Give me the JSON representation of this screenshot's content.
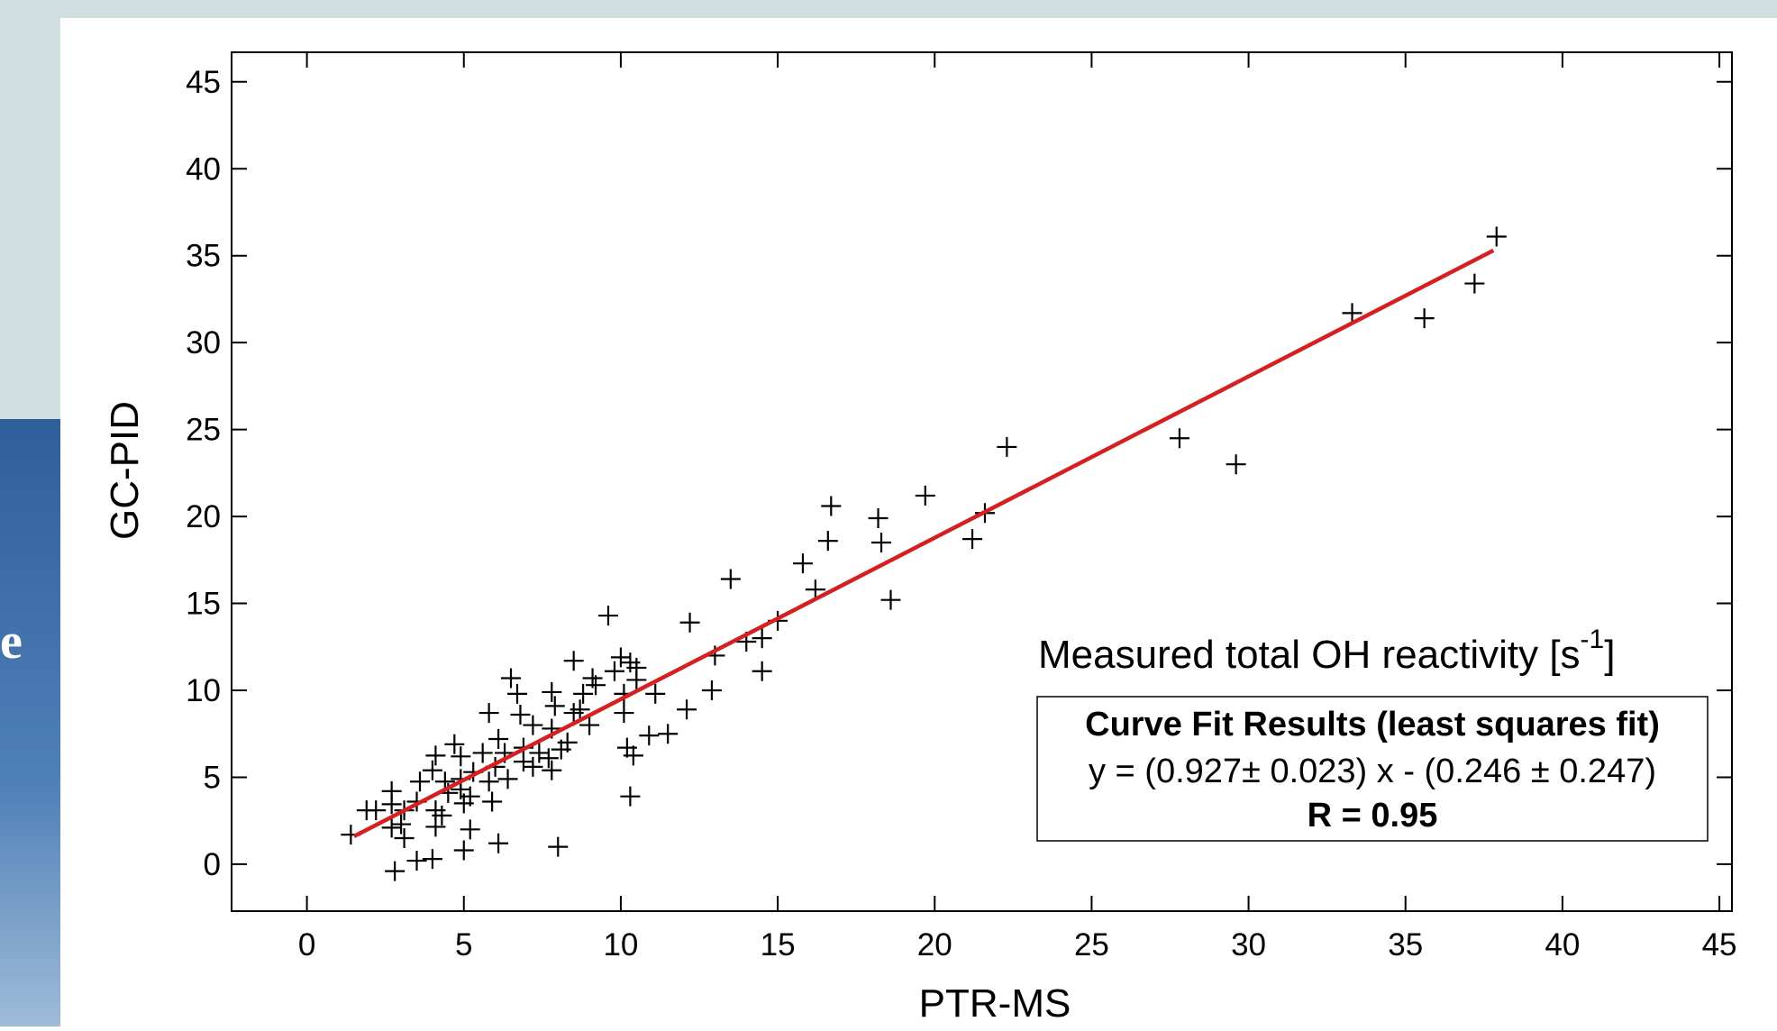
{
  "chart_data": {
    "type": "scatter",
    "xlabel": "PTR-MS",
    "ylabel": "GC-PID",
    "xlim": [
      -2.4,
      45.4
    ],
    "ylim": [
      -2.7,
      46.7
    ],
    "xticks": [
      0,
      5,
      10,
      15,
      20,
      25,
      30,
      35,
      40,
      45
    ],
    "yticks": [
      0,
      5,
      10,
      15,
      20,
      25,
      30,
      35,
      40,
      45
    ],
    "marker_color": "#000000",
    "x": [
      37.9,
      37.2,
      35.6,
      33.3,
      27.8,
      29.6,
      22.3,
      21.6,
      21.2,
      19.7,
      18.2,
      18.3,
      18.6,
      16.7,
      16.6,
      15.8,
      16.2,
      15.0,
      14.5,
      14.0,
      14.5,
      13.5,
      13.0,
      12.9,
      12.2,
      12.1,
      9.6,
      10.3,
      8.0,
      6.1,
      5.0,
      4.0,
      3.5,
      2.8,
      10.9,
      10.4,
      10.2,
      10.0,
      10.3,
      10.5,
      10.1,
      9.8,
      10.1,
      8.5,
      9.1,
      8.8,
      7.8,
      7.9,
      8.7,
      9.0,
      8.5,
      7.8,
      8.1,
      7.7,
      7.2,
      6.8,
      6.5,
      6.7,
      5.8,
      6.1,
      6.9,
      7.2,
      7.8,
      6.3,
      6.0,
      5.6,
      6.4,
      5.8,
      5.3,
      4.9,
      4.7,
      4.1,
      4.0,
      4.4,
      4.9,
      5.0,
      5.9,
      5.2,
      4.5,
      3.6,
      3.5,
      4.1,
      4.3,
      4.1,
      3.1,
      2.7,
      2.7,
      2.7,
      2.2,
      1.9,
      3.1,
      3.0,
      1.4,
      4.9,
      5.2,
      11.5,
      11.1,
      10.5,
      9.2,
      6.9,
      7.4,
      8.3
    ],
    "values": [
      36.1,
      33.4,
      31.4,
      31.7,
      24.5,
      23.0,
      24.0,
      20.2,
      18.7,
      21.2,
      19.9,
      18.5,
      15.2,
      20.6,
      18.6,
      17.3,
      15.8,
      14.0,
      13.0,
      12.8,
      11.1,
      16.4,
      12.0,
      10.0,
      13.9,
      8.9,
      14.3,
      3.9,
      1.0,
      1.2,
      0.8,
      0.3,
      0.2,
      -0.4,
      7.4,
      6.25,
      6.7,
      11.9,
      11.6,
      10.6,
      9.8,
      11.1,
      8.7,
      11.7,
      10.7,
      9.8,
      9.9,
      9.1,
      8.9,
      8.0,
      8.7,
      7.8,
      6.6,
      6.1,
      8.0,
      8.6,
      10.7,
      9.8,
      8.7,
      7.2,
      6.7,
      5.6,
      5.4,
      6.4,
      5.6,
      6.4,
      4.9,
      4.75,
      5.3,
      6.2,
      6.9,
      6.25,
      5.4,
      4.75,
      4.3,
      3.5,
      3.6,
      2.0,
      4.1,
      4.75,
      3.6,
      3.1,
      2.8,
      2.15,
      3.1,
      4.2,
      3.45,
      2.1,
      3.1,
      3.1,
      1.5,
      2.3,
      1.7,
      4.9,
      3.9,
      7.5,
      9.8,
      11.3,
      10.3,
      5.9,
      6.4,
      7.0
    ],
    "fit": {
      "color": "#d42020",
      "x": [
        1.5,
        37.8
      ],
      "values": [
        1.6,
        35.3
      ]
    },
    "annotation": {
      "text": "Measured total OH reactivity [s",
      "superscript": "-1",
      "close": "]"
    },
    "fit_box": {
      "title": "Curve Fit Results (least squares fit)",
      "equation": "y = (0.927± 0.023) x - (0.246 ± 0.247)",
      "r": "R = 0.95"
    }
  },
  "sidebar": {
    "text": "e"
  }
}
